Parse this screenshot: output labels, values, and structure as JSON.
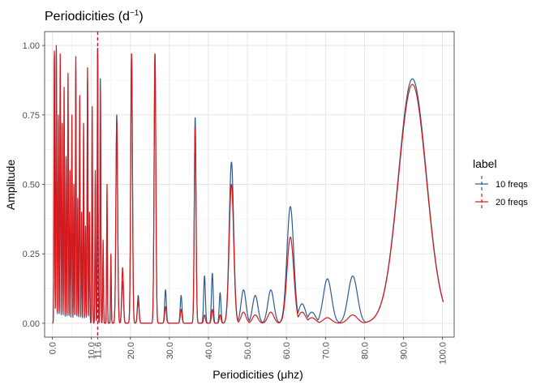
{
  "chart_data": {
    "type": "line",
    "title": "Periodicities (d",
    "title_superscript": "−1",
    "title_suffix": ")",
    "xlabel": "Periodicities (μhz)",
    "ylabel": "Amplitude",
    "xlim": [
      -2,
      103
    ],
    "ylim": [
      -0.05,
      1.05
    ],
    "x_ticks": [
      0,
      10,
      11.6,
      20,
      30,
      40,
      50,
      60,
      70,
      80,
      90,
      100
    ],
    "x_tick_labels": [
      "0.0",
      "10.0",
      "11.6",
      "20.0",
      "30.0",
      "40.0",
      "50.0",
      "60.0",
      "70.0",
      "80.0",
      "90.0",
      "100.0"
    ],
    "y_ticks": [
      0,
      0.25,
      0.5,
      0.75,
      1.0
    ],
    "y_tick_labels": [
      "0.00",
      "0.25",
      "0.50",
      "0.75",
      "1.00"
    ],
    "vline": {
      "x": 11.6,
      "style": "dashed",
      "color": "#c8102e"
    },
    "grid": true,
    "legend": {
      "title": "label",
      "placement": "right"
    },
    "series": [
      {
        "name": "10  freqs",
        "color": "#2f5a8f",
        "peaks": [
          [
            0.5,
            0.97
          ],
          [
            1.0,
            0.98
          ],
          [
            1.5,
            0.62
          ],
          [
            2.0,
            0.85
          ],
          [
            2.5,
            0.55
          ],
          [
            3.0,
            0.72
          ],
          [
            3.5,
            0.45
          ],
          [
            4.0,
            0.8
          ],
          [
            4.5,
            0.4
          ],
          [
            5.0,
            0.62
          ],
          [
            5.5,
            0.35
          ],
          [
            6.0,
            0.92
          ],
          [
            6.5,
            0.3
          ],
          [
            7.0,
            0.68
          ],
          [
            7.5,
            0.28
          ],
          [
            8.0,
            0.58
          ],
          [
            8.5,
            0.25
          ],
          [
            9.0,
            0.88
          ],
          [
            9.5,
            0.3
          ],
          [
            10.2,
            0.65
          ],
          [
            11.0,
            0.5
          ],
          [
            11.6,
            0.98
          ],
          [
            12.3,
            0.88
          ],
          [
            13.0,
            0.25
          ],
          [
            14.0,
            0.4
          ],
          [
            15.0,
            0.18
          ],
          [
            16.5,
            0.75
          ],
          [
            18.0,
            0.15
          ],
          [
            20.3,
            0.97
          ],
          [
            22.0,
            0.1
          ],
          [
            26.3,
            0.97
          ],
          [
            29.0,
            0.12
          ],
          [
            33.0,
            0.1
          ],
          [
            36.6,
            0.74
          ],
          [
            39.0,
            0.17
          ],
          [
            41.0,
            0.18
          ],
          [
            43.0,
            0.11
          ],
          [
            45.9,
            0.58
          ],
          [
            49.0,
            0.12
          ],
          [
            52.0,
            0.1
          ],
          [
            56.0,
            0.12
          ],
          [
            61.0,
            0.42
          ],
          [
            64.0,
            0.07
          ],
          [
            66.5,
            0.04
          ],
          [
            70.5,
            0.16
          ],
          [
            77.0,
            0.17
          ],
          [
            85.0,
            0.08
          ],
          [
            92.3,
            0.88
          ]
        ]
      },
      {
        "name": "20  freqs",
        "color": "#d7191c",
        "peaks": [
          [
            0.5,
            0.98
          ],
          [
            1.0,
            1.0
          ],
          [
            1.5,
            0.75
          ],
          [
            2.0,
            0.97
          ],
          [
            2.5,
            0.72
          ],
          [
            3.0,
            0.85
          ],
          [
            3.5,
            0.6
          ],
          [
            4.0,
            0.9
          ],
          [
            4.5,
            0.55
          ],
          [
            5.0,
            0.75
          ],
          [
            5.5,
            0.5
          ],
          [
            6.0,
            0.96
          ],
          [
            6.5,
            0.45
          ],
          [
            7.0,
            0.82
          ],
          [
            7.5,
            0.4
          ],
          [
            8.0,
            0.72
          ],
          [
            8.5,
            0.35
          ],
          [
            9.0,
            0.92
          ],
          [
            9.5,
            0.4
          ],
          [
            10.2,
            0.78
          ],
          [
            11.0,
            0.55
          ],
          [
            11.6,
            0.99
          ],
          [
            12.3,
            0.85
          ],
          [
            13.0,
            0.3
          ],
          [
            14.0,
            0.5
          ],
          [
            15.0,
            0.25
          ],
          [
            16.5,
            0.73
          ],
          [
            18.0,
            0.2
          ],
          [
            20.3,
            0.97
          ],
          [
            22.0,
            0.08
          ],
          [
            26.3,
            0.97
          ],
          [
            29.0,
            0.06
          ],
          [
            33.0,
            0.05
          ],
          [
            36.6,
            0.7
          ],
          [
            39.0,
            0.03
          ],
          [
            41.0,
            0.05
          ],
          [
            43.0,
            0.03
          ],
          [
            45.9,
            0.5
          ],
          [
            49.0,
            0.04
          ],
          [
            52.0,
            0.03
          ],
          [
            56.0,
            0.04
          ],
          [
            61.0,
            0.31
          ],
          [
            64.0,
            0.04
          ],
          [
            66.5,
            0.02
          ],
          [
            70.5,
            0.02
          ],
          [
            77.0,
            0.03
          ],
          [
            85.0,
            0.05
          ],
          [
            92.3,
            0.86
          ]
        ]
      }
    ]
  }
}
